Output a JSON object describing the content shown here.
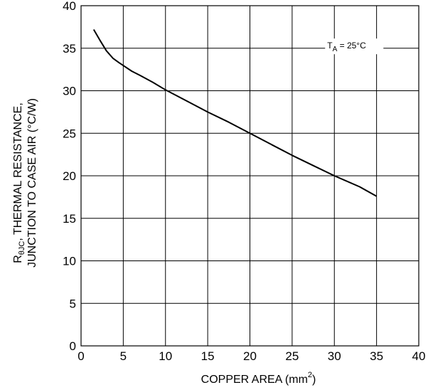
{
  "chart_data": {
    "type": "line",
    "xlabel_main": "COPPER AREA (mm",
    "xlabel_sup": "2",
    "xlabel_close": ")",
    "ylabel_line1_r": "R",
    "ylabel_line1_sub": "θJC",
    "ylabel_line1_rest": ", THERMAL RESISTANCE,",
    "ylabel_line2": "JUNCTION TO CASE AIR (°C/W)",
    "xlim": [
      0,
      40
    ],
    "ylim": [
      0,
      40
    ],
    "x_ticks": [
      0,
      5,
      10,
      15,
      20,
      25,
      30,
      35,
      40
    ],
    "y_ticks": [
      0,
      5,
      10,
      15,
      20,
      25,
      30,
      35,
      40
    ],
    "grid": true,
    "annotation": {
      "t": "T",
      "sub": "A",
      "rest": " = 25°C",
      "x": 30,
      "y": 35.3
    },
    "series": [
      {
        "x": [
          1.5,
          2.2,
          3.0,
          3.8,
          4.5,
          6.0,
          7.0,
          8.5,
          10.0,
          12.5,
          15.0,
          17.5,
          20.0,
          22.5,
          25.0,
          27.5,
          30.0,
          33.0,
          35.0
        ],
        "y": [
          37.2,
          36.0,
          34.7,
          33.8,
          33.3,
          32.3,
          31.8,
          31.0,
          30.1,
          28.8,
          27.5,
          26.3,
          25.0,
          23.7,
          22.4,
          21.2,
          20.0,
          18.7,
          17.6
        ],
        "color": "#000000"
      }
    ]
  }
}
